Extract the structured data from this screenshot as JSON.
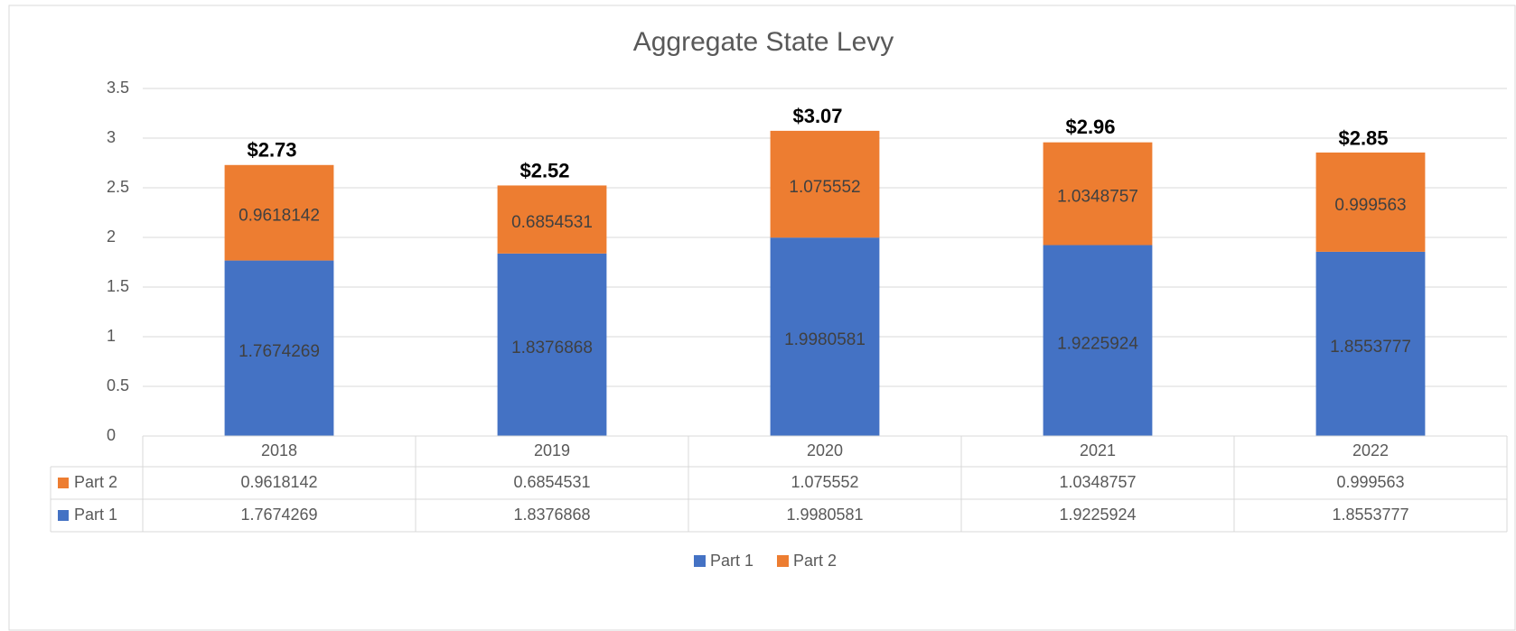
{
  "chart_data": {
    "type": "stacked_bar",
    "title": "Aggregate State Levy",
    "categories": [
      "2018",
      "2019",
      "2020",
      "2021",
      "2022"
    ],
    "series": [
      {
        "name": "Part 1",
        "color": "#4472c4",
        "values": [
          1.7674269,
          1.8376868,
          1.9980581,
          1.9225924,
          1.8553777
        ]
      },
      {
        "name": "Part 2",
        "color": "#ed7d31",
        "values": [
          0.9618142,
          0.6854531,
          1.075552,
          1.0348757,
          0.999563
        ]
      }
    ],
    "totals": {
      "values": [
        2.73,
        2.52,
        3.07,
        2.96,
        2.85
      ],
      "value_labels": [
        "$2.73",
        "$2.52",
        "$3.07",
        "$2.96",
        "$2.85"
      ]
    },
    "ylim": [
      0,
      3.5
    ],
    "yticks": [
      0,
      0.5,
      1,
      1.5,
      2,
      2.5,
      3,
      3.5
    ],
    "grid": true,
    "legend": "bottom",
    "data_table": true
  }
}
